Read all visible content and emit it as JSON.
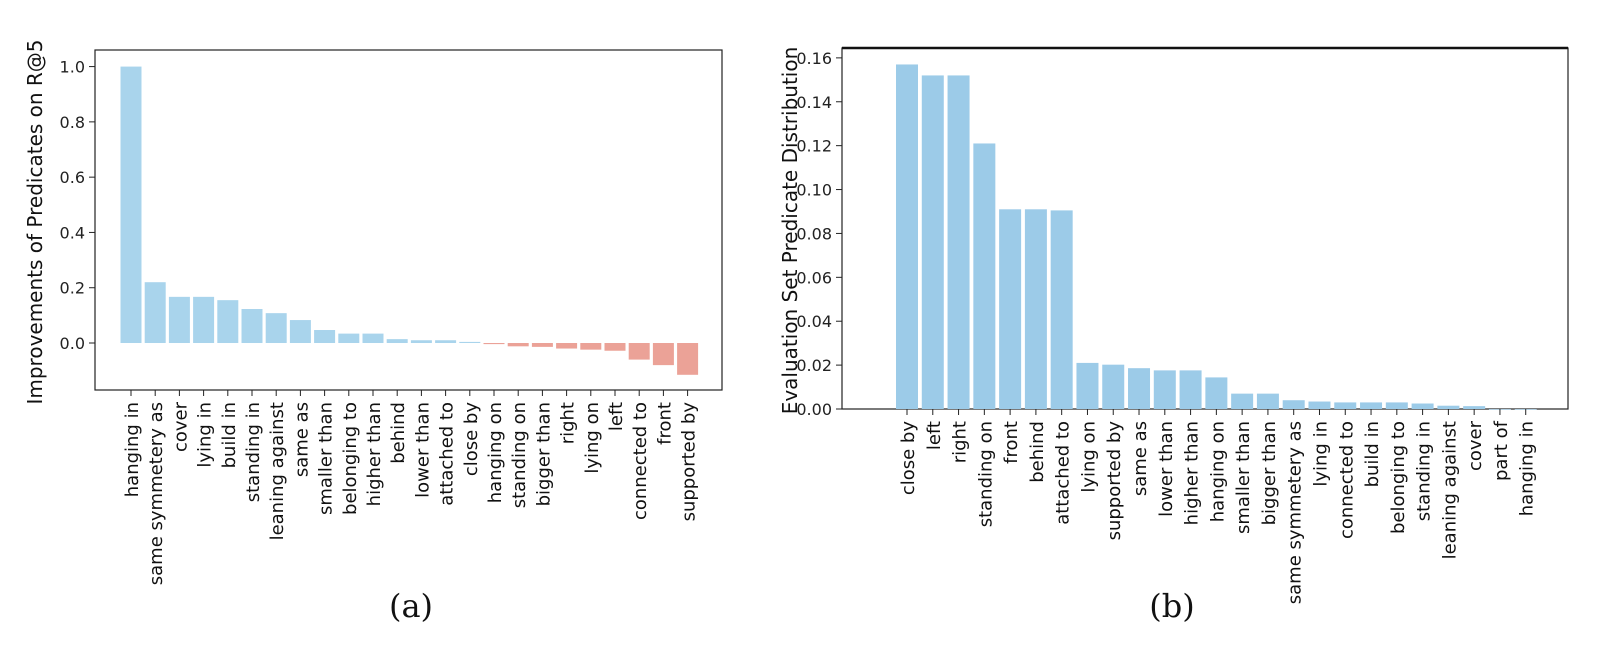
{
  "chart_data": [
    {
      "type": "bar",
      "panel_label": "(a)",
      "ylabel": "Improvements of Predicates on R@5",
      "ylim": [
        -0.17,
        1.06
      ],
      "yticks": [
        0.0,
        0.2,
        0.4,
        0.6,
        0.8,
        1.0
      ],
      "ytick_labels": [
        "0.0",
        "0.2",
        "0.4",
        "0.6",
        "0.8",
        "1.0"
      ],
      "grid": false,
      "colors": {
        "positive": "#a9d4ec",
        "negative": "#eba297"
      },
      "categories": [
        "hanging in",
        "same symmetery as",
        "cover",
        "lying in",
        "build in",
        "standing in",
        "leaning against",
        "same as",
        "smaller than",
        "belonging to",
        "higher than",
        "behind",
        "lower than",
        "attached to",
        "close by",
        "hanging on",
        "standing on",
        "bigger than",
        "right",
        "lying on",
        "left",
        "connected to",
        "front",
        "supported by"
      ],
      "values": [
        1.0,
        0.22,
        0.167,
        0.167,
        0.155,
        0.123,
        0.108,
        0.083,
        0.047,
        0.034,
        0.034,
        0.014,
        0.01,
        0.01,
        0.004,
        -0.004,
        -0.012,
        -0.014,
        -0.02,
        -0.024,
        -0.028,
        -0.06,
        -0.08,
        -0.115
      ]
    },
    {
      "type": "bar",
      "panel_label": "(b)",
      "ylabel": "Evaluation Set Predicate Distribution",
      "ylim": [
        0.0,
        0.1645
      ],
      "yticks": [
        0.0,
        0.02,
        0.04,
        0.06,
        0.08,
        0.1,
        0.12,
        0.14,
        0.16
      ],
      "ytick_labels": [
        "0.00",
        "0.02",
        "0.04",
        "0.06",
        "0.08",
        "0.10",
        "0.12",
        "0.14",
        "0.16"
      ],
      "grid": false,
      "colors": {
        "bar": "#9ccbe8"
      },
      "categories": [
        "close by",
        "left",
        "right",
        "standing on",
        "front",
        "behind",
        "attached to",
        "lying on",
        "supported by",
        "same as",
        "lower than",
        "higher than",
        "hanging on",
        "smaller than",
        "bigger than",
        "same symmetery as",
        "lying in",
        "connected to",
        "build in",
        "belonging to",
        "standing in",
        "leaning against",
        "cover",
        "part of",
        "hanging in"
      ],
      "values": [
        0.157,
        0.152,
        0.152,
        0.121,
        0.091,
        0.091,
        0.0905,
        0.021,
        0.0202,
        0.0186,
        0.0176,
        0.0176,
        0.0144,
        0.007,
        0.007,
        0.004,
        0.0034,
        0.003,
        0.003,
        0.003,
        0.0025,
        0.0015,
        0.0013,
        0.0,
        0.0
      ]
    }
  ]
}
